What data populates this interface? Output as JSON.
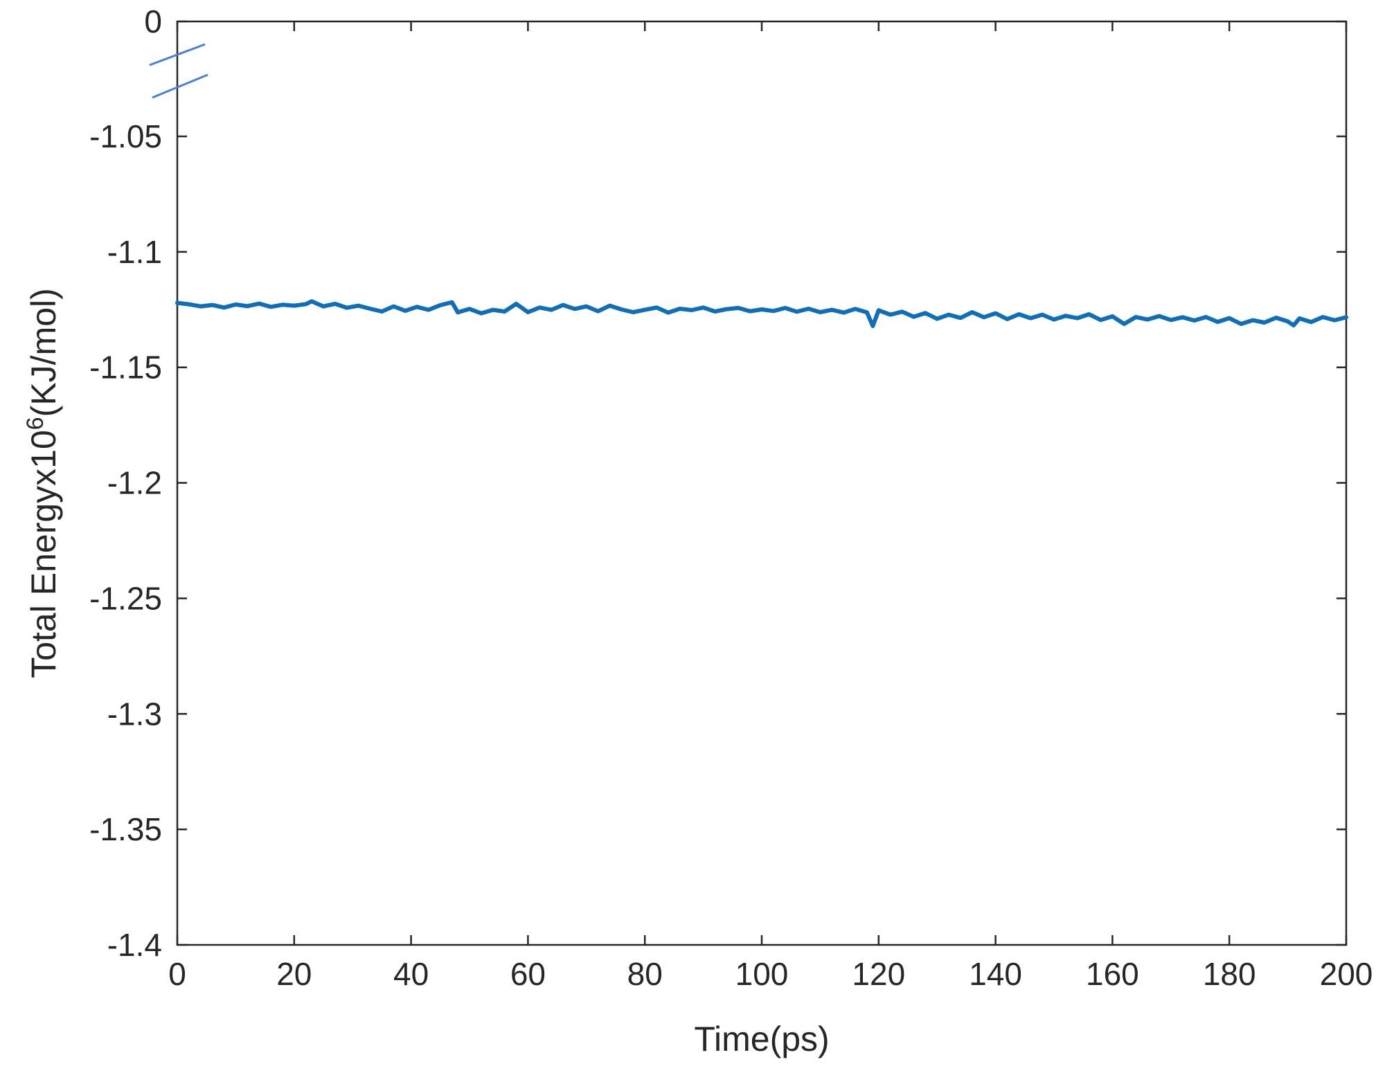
{
  "chart_data": {
    "type": "line",
    "xlabel": "Time(ps)",
    "ylabel": {
      "prefix": "Total Energyx10",
      "superscript": "6",
      "suffix": "(KJ/mol)"
    },
    "xlim": [
      0,
      200
    ],
    "ylim": [
      -1.4,
      0
    ],
    "xticks": [
      0,
      20,
      40,
      60,
      80,
      100,
      120,
      140,
      160,
      180,
      200
    ],
    "xtick_labels": [
      "0",
      "20",
      "40",
      "60",
      "80",
      "100",
      "120",
      "140",
      "160",
      "180",
      "200"
    ],
    "yticks": [
      0,
      -1.05,
      -1.1,
      -1.15,
      -1.2,
      -1.25,
      -1.3,
      -1.35,
      -1.4
    ],
    "ytick_labels": [
      "0",
      "-1.05",
      "-1.1",
      "-1.15",
      "-1.2",
      "-1.25",
      "-1.3",
      "-1.35",
      "-1.4"
    ],
    "axis_break": "between 0 and -1.05",
    "grid": false,
    "series": [
      {
        "color": "#0e6eb8",
        "x": [
          0,
          2,
          4,
          6,
          8,
          10,
          12,
          14,
          16,
          18,
          20,
          22,
          23,
          25,
          27,
          29,
          31,
          33,
          35,
          37,
          39,
          41,
          43,
          45,
          47,
          48,
          50,
          52,
          54,
          56,
          58,
          60,
          62,
          64,
          66,
          68,
          70,
          72,
          74,
          76,
          78,
          80,
          82,
          84,
          86,
          88,
          90,
          92,
          94,
          96,
          98,
          100,
          102,
          104,
          106,
          108,
          110,
          112,
          114,
          116,
          118,
          119,
          120,
          122,
          124,
          126,
          128,
          130,
          132,
          134,
          136,
          138,
          140,
          142,
          144,
          146,
          148,
          150,
          152,
          154,
          156,
          158,
          160,
          162,
          164,
          166,
          168,
          170,
          172,
          174,
          176,
          178,
          180,
          182,
          184,
          186,
          188,
          190,
          191,
          192,
          194,
          196,
          198,
          200
        ],
        "y": [
          -1.1221,
          -1.1227,
          -1.1236,
          -1.123,
          -1.1241,
          -1.1228,
          -1.1235,
          -1.1224,
          -1.1238,
          -1.1229,
          -1.1233,
          -1.1226,
          -1.1214,
          -1.1236,
          -1.1225,
          -1.1242,
          -1.1233,
          -1.1246,
          -1.1258,
          -1.1236,
          -1.1255,
          -1.1238,
          -1.1251,
          -1.1231,
          -1.1218,
          -1.1262,
          -1.1247,
          -1.1266,
          -1.1251,
          -1.1258,
          -1.1225,
          -1.1261,
          -1.1241,
          -1.1251,
          -1.123,
          -1.1247,
          -1.1236,
          -1.1257,
          -1.1233,
          -1.1249,
          -1.1261,
          -1.1251,
          -1.1241,
          -1.1263,
          -1.1246,
          -1.1252,
          -1.1241,
          -1.1258,
          -1.1248,
          -1.1243,
          -1.1257,
          -1.1249,
          -1.1256,
          -1.1243,
          -1.1259,
          -1.1246,
          -1.1261,
          -1.1251,
          -1.1263,
          -1.1247,
          -1.1262,
          -1.1321,
          -1.1253,
          -1.1272,
          -1.1259,
          -1.1281,
          -1.1265,
          -1.129,
          -1.1272,
          -1.1286,
          -1.1261,
          -1.1283,
          -1.1266,
          -1.1291,
          -1.127,
          -1.1287,
          -1.1272,
          -1.1293,
          -1.1277,
          -1.1287,
          -1.127,
          -1.1295,
          -1.1279,
          -1.1312,
          -1.1282,
          -1.1293,
          -1.1278,
          -1.1295,
          -1.1283,
          -1.1297,
          -1.1282,
          -1.1303,
          -1.1287,
          -1.1312,
          -1.1296,
          -1.1306,
          -1.1285,
          -1.1301,
          -1.1318,
          -1.1288,
          -1.1304,
          -1.1282,
          -1.1296,
          -1.1283
        ]
      }
    ]
  }
}
